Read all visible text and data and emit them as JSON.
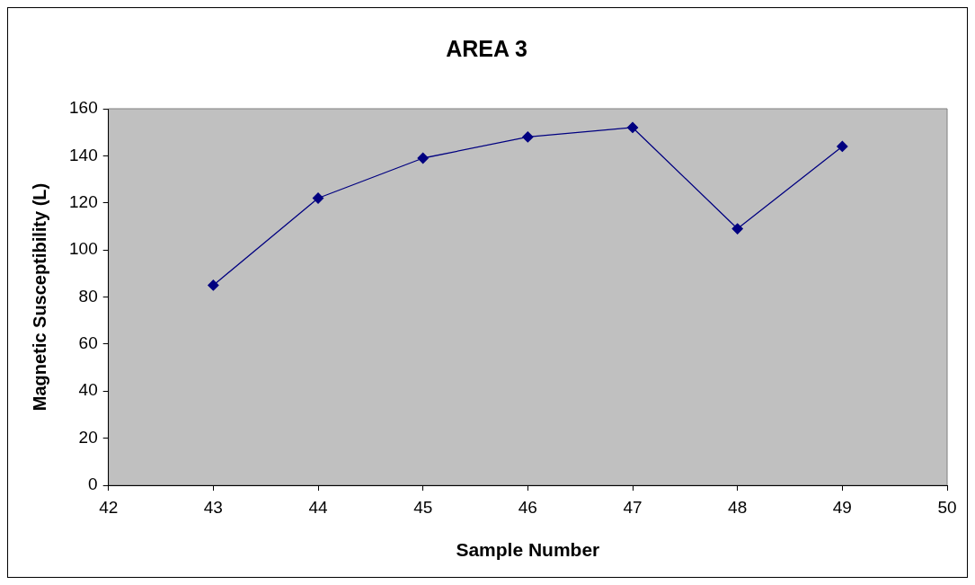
{
  "chart_data": {
    "type": "line",
    "title": "AREA 3",
    "xlabel": "Sample Number",
    "ylabel": "Magnetic Susceptibility (L)",
    "x": [
      43,
      44,
      45,
      46,
      47,
      48,
      49
    ],
    "series": [
      {
        "color": "#000080",
        "values": [
          85,
          122,
          139,
          148,
          152,
          109,
          144
        ]
      }
    ],
    "xlim": [
      42,
      50
    ],
    "xticks": [
      42,
      43,
      44,
      45,
      46,
      47,
      48,
      49,
      50
    ],
    "ylim": [
      0,
      160
    ],
    "yticks": [
      0,
      20,
      40,
      60,
      80,
      100,
      120,
      140,
      160
    ],
    "grid": false,
    "legend": false,
    "marker": "diamond",
    "line_style": "solid"
  }
}
